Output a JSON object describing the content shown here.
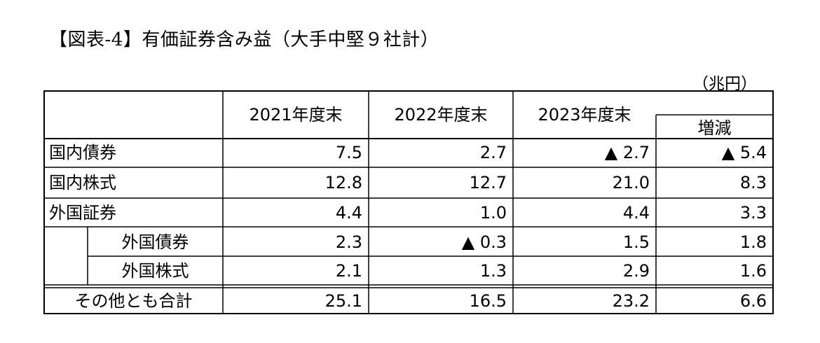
{
  "title": "【図表-4】有価証券含み益（大手中堅９社計）",
  "unit": "（兆円）",
  "table": {
    "col_headers": [
      "2021年度末",
      "2022年度末",
      "2023年度末",
      "増減"
    ],
    "rows": [
      {
        "label": "国内債券",
        "values": [
          "7.5",
          "2.7",
          "▲ 2.7",
          "▲ 5.4"
        ]
      },
      {
        "label": "国内株式",
        "values": [
          "12.8",
          "12.7",
          "21.0",
          "8.3"
        ]
      },
      {
        "label": "外国証券",
        "values": [
          "4.4",
          "1.0",
          "4.4",
          "3.3"
        ]
      },
      {
        "label": "外国債券",
        "values": [
          "2.3",
          "▲ 0.3",
          "1.5",
          "1.8"
        ]
      },
      {
        "label": "外国株式",
        "values": [
          "2.1",
          "1.3",
          "2.9",
          "1.6"
        ]
      },
      {
        "label": "その他とも合計",
        "values": [
          "25.1",
          "16.5",
          "23.2",
          "6.6"
        ]
      }
    ]
  }
}
